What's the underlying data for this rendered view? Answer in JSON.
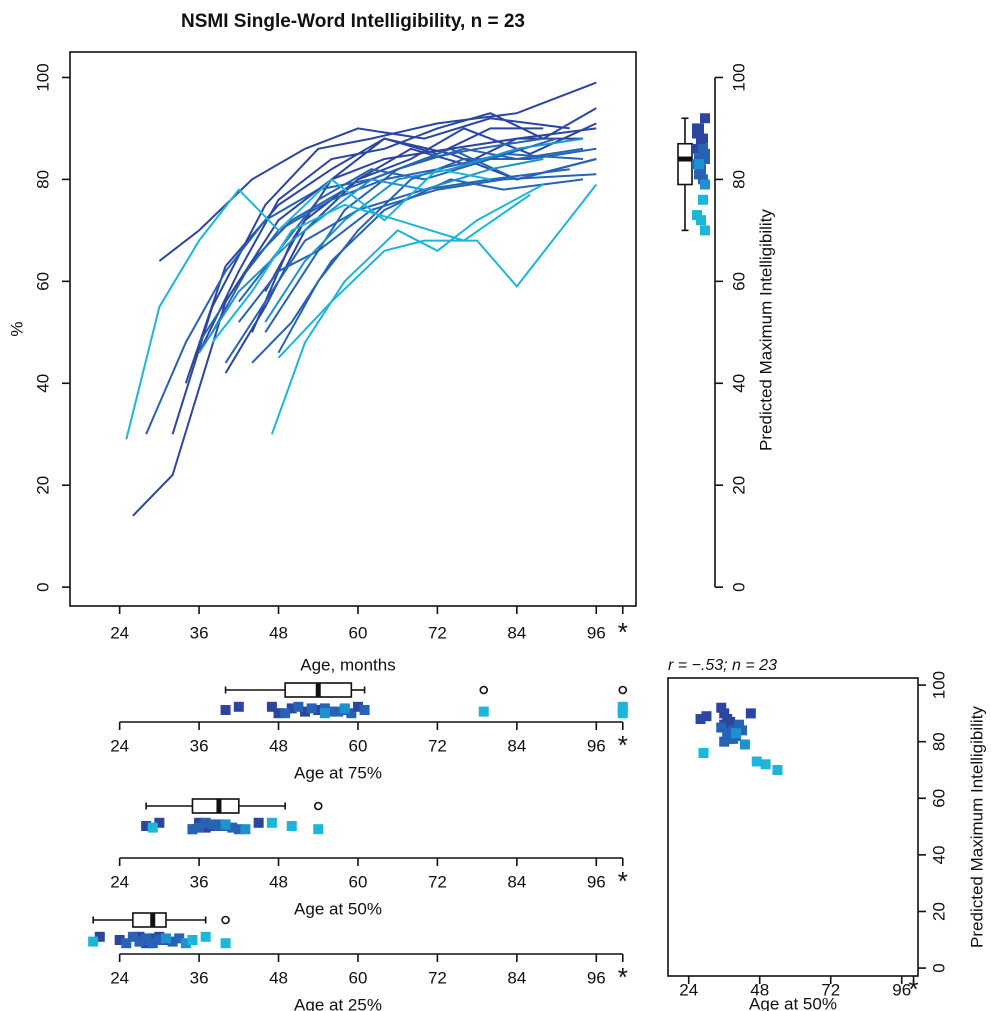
{
  "chart_data": [
    {
      "type": "line",
      "title": "NSMI Single-Word Intelligibility, n = 23",
      "xlabel": "Age, months",
      "ylabel": "%",
      "xlim": [
        16.5,
        102
      ],
      "ylim": [
        -3.7,
        105
      ],
      "xticks": [
        24,
        36,
        48,
        60,
        72,
        84,
        96,
        {
          "value": 100,
          "label": "*"
        }
      ],
      "yticks": [
        0,
        20,
        40,
        60,
        80,
        100
      ],
      "series": [
        {
          "color": "#2b45a0",
          "x": [
            32,
            38,
            46,
            54,
            62,
            72,
            84,
            96
          ],
          "values": [
            30,
            55,
            75,
            86,
            88,
            91,
            93,
            99
          ]
        },
        {
          "color": "#2b45a0",
          "x": [
            30,
            36,
            44,
            52,
            60,
            70,
            80,
            92
          ],
          "values": [
            64,
            70,
            80,
            86,
            90,
            88,
            92,
            90
          ]
        },
        {
          "color": "#2b45a0",
          "x": [
            36,
            42,
            48,
            56,
            64,
            72,
            80,
            88,
            96
          ],
          "values": [
            46,
            62,
            76,
            84,
            86,
            90,
            93,
            88,
            94
          ]
        },
        {
          "color": "#2b45a0",
          "x": [
            34,
            40,
            48,
            56,
            64,
            74,
            84,
            96
          ],
          "values": [
            40,
            63,
            75,
            82,
            88,
            85,
            80,
            84
          ]
        },
        {
          "color": "#2b45a0",
          "x": [
            40,
            46,
            52,
            60,
            68,
            76,
            86,
            96
          ],
          "values": [
            42,
            55,
            70,
            80,
            84,
            90,
            85,
            91
          ]
        },
        {
          "color": "#2b45a0",
          "x": [
            44,
            50,
            56,
            64,
            72,
            80,
            88
          ],
          "values": [
            50,
            68,
            80,
            88,
            85,
            90,
            90
          ]
        },
        {
          "color": "#2b45a0",
          "x": [
            46,
            52,
            60,
            68,
            76,
            84,
            94
          ],
          "values": [
            58,
            72,
            80,
            86,
            83,
            88,
            88
          ]
        },
        {
          "color": "#2663b5",
          "x": [
            28,
            34,
            40,
            46,
            54,
            62,
            70,
            78,
            88
          ],
          "values": [
            30,
            48,
            62,
            72,
            78,
            80,
            84,
            86,
            88
          ]
        },
        {
          "color": "#2663b5",
          "x": [
            38,
            44,
            50,
            58,
            66,
            76,
            84,
            94
          ],
          "values": [
            50,
            64,
            72,
            78,
            82,
            86,
            84,
            86
          ]
        },
        {
          "color": "#2663b5",
          "x": [
            42,
            48,
            54,
            62,
            70,
            80,
            90
          ],
          "values": [
            56,
            66,
            76,
            82,
            80,
            84,
            88
          ]
        },
        {
          "color": "#2663b5",
          "x": [
            36,
            42,
            48,
            56,
            64,
            72,
            82,
            94
          ],
          "values": [
            48,
            60,
            70,
            76,
            80,
            82,
            85,
            84
          ]
        },
        {
          "color": "#2663b5",
          "x": [
            46,
            52,
            58,
            66,
            74,
            84,
            96
          ],
          "values": [
            50,
            62,
            74,
            82,
            86,
            80,
            84
          ]
        },
        {
          "color": "#2663b5",
          "x": [
            48,
            54,
            60,
            68,
            76,
            86,
            96
          ],
          "values": [
            46,
            60,
            70,
            80,
            84,
            84,
            86
          ]
        },
        {
          "color": "#2663b5",
          "x": [
            40,
            46,
            52,
            60,
            70,
            80,
            92
          ],
          "values": [
            44,
            56,
            68,
            74,
            78,
            80,
            82
          ]
        },
        {
          "color": "#2663b5",
          "x": [
            42,
            48,
            54,
            62,
            72,
            82,
            96
          ],
          "values": [
            52,
            62,
            66,
            74,
            78,
            80,
            81
          ]
        },
        {
          "color": "#2b45a0",
          "x": [
            26,
            32,
            40,
            48,
            56,
            64,
            74,
            84,
            96
          ],
          "values": [
            14,
            22,
            56,
            72,
            80,
            84,
            86,
            88,
            90
          ]
        },
        {
          "color": "#2663b5",
          "x": [
            44,
            50,
            56,
            64,
            74,
            82,
            94
          ],
          "values": [
            44,
            52,
            64,
            74,
            80,
            78,
            80
          ]
        },
        {
          "color": "#1c93cf",
          "x": [
            36,
            42,
            50,
            56,
            62,
            70,
            80,
            88
          ],
          "values": [
            46,
            58,
            68,
            74,
            80,
            78,
            82,
            84
          ]
        },
        {
          "color": "#1c93cf",
          "x": [
            46,
            52,
            58,
            66,
            74,
            84,
            94
          ],
          "values": [
            52,
            64,
            72,
            80,
            82,
            86,
            88
          ]
        },
        {
          "color": "#1bb6d9",
          "x": [
            25,
            30,
            36,
            42,
            48,
            56,
            64,
            72,
            80
          ],
          "values": [
            29,
            55,
            68,
            78,
            70,
            80,
            72,
            82,
            80
          ]
        },
        {
          "color": "#1bb6d9",
          "x": [
            38,
            44,
            50,
            58,
            66,
            76,
            86
          ],
          "values": [
            48,
            58,
            70,
            75,
            72,
            68,
            77
          ]
        },
        {
          "color": "#1bb6d9",
          "x": [
            47,
            52,
            58,
            66,
            72,
            78,
            88
          ],
          "values": [
            30,
            48,
            60,
            70,
            66,
            72,
            79
          ]
        },
        {
          "color": "#1bb6d9",
          "x": [
            48,
            56,
            64,
            70,
            78,
            84,
            96
          ],
          "values": [
            45,
            56,
            66,
            68,
            68,
            59,
            79
          ]
        }
      ]
    },
    {
      "type": "box",
      "orientation": "vertical",
      "ylabel": "Predicted Maximum Intelligibility",
      "ylim": [
        -3.7,
        105
      ],
      "yticks": [
        0,
        20,
        40,
        60,
        80,
        100
      ],
      "values": [
        89,
        88,
        92,
        90,
        88,
        86,
        87,
        85,
        84,
        86,
        83,
        82,
        84,
        81,
        80,
        90,
        81,
        79,
        83,
        76,
        73,
        72,
        70
      ],
      "colors": [
        "#2b45a0",
        "#2b45a0",
        "#2b45a0",
        "#2b45a0",
        "#2b45a0",
        "#2b45a0",
        "#2b45a0",
        "#2663b5",
        "#2663b5",
        "#2663b5",
        "#2663b5",
        "#2663b5",
        "#2663b5",
        "#2663b5",
        "#2663b5",
        "#2b45a0",
        "#2663b5",
        "#1c93cf",
        "#1c93cf",
        "#1bb6d9",
        "#1bb6d9",
        "#1bb6d9",
        "#1bb6d9"
      ],
      "box": {
        "whislo": 70,
        "q1": 79,
        "med": 84,
        "q3": 87,
        "whishi": 92
      },
      "fliers": []
    },
    {
      "type": "box",
      "orientation": "horizontal",
      "xlabel": "Age at 75%",
      "xlim": [
        16.5,
        102
      ],
      "xticks": [
        24,
        36,
        48,
        60,
        72,
        84,
        96,
        {
          "value": 100,
          "label": "*"
        }
      ],
      "values": [
        42,
        40,
        48,
        50,
        52,
        47,
        54,
        49,
        55,
        57,
        51,
        58,
        59,
        53,
        56,
        60,
        61,
        55,
        58,
        79,
        100,
        100,
        100
      ],
      "colors": [
        "#2b45a0",
        "#2b45a0",
        "#2b45a0",
        "#2b45a0",
        "#2b45a0",
        "#2b45a0",
        "#2b45a0",
        "#2663b5",
        "#2663b5",
        "#2663b5",
        "#2663b5",
        "#2663b5",
        "#2663b5",
        "#2663b5",
        "#2663b5",
        "#2b45a0",
        "#2663b5",
        "#1c93cf",
        "#1c93cf",
        "#1bb6d9",
        "#1bb6d9",
        "#1bb6d9",
        "#1bb6d9"
      ],
      "box": {
        "whislo": 40,
        "q1": 49,
        "med": 54,
        "q3": 59,
        "whishi": 61
      },
      "fliers": [
        79,
        100
      ]
    },
    {
      "type": "box",
      "orientation": "horizontal",
      "xlabel": "Age at 50%",
      "xlim": [
        16.5,
        102
      ],
      "xticks": [
        24,
        36,
        48,
        60,
        72,
        84,
        96,
        {
          "value": 100,
          "label": "*"
        }
      ],
      "values": [
        30,
        28,
        35,
        36,
        37,
        36,
        38,
        35,
        39,
        41,
        37,
        40,
        42,
        38,
        36,
        45,
        39,
        43,
        40,
        29,
        47,
        50,
        54
      ],
      "colors": [
        "#2b45a0",
        "#2b45a0",
        "#2b45a0",
        "#2b45a0",
        "#2b45a0",
        "#2b45a0",
        "#2b45a0",
        "#2663b5",
        "#2663b5",
        "#2663b5",
        "#2663b5",
        "#2663b5",
        "#2663b5",
        "#2663b5",
        "#2663b5",
        "#2b45a0",
        "#2663b5",
        "#1c93cf",
        "#1c93cf",
        "#1bb6d9",
        "#1bb6d9",
        "#1bb6d9",
        "#1bb6d9"
      ],
      "box": {
        "whislo": 28,
        "q1": 35,
        "med": 39,
        "q3": 42,
        "whishi": 49
      },
      "fliers": [
        54
      ]
    },
    {
      "type": "box",
      "orientation": "horizontal",
      "xlabel": "Age at 25%",
      "xlim": [
        16.5,
        102
      ],
      "xticks": [
        24,
        36,
        48,
        60,
        72,
        84,
        96,
        {
          "value": 100,
          "label": "*"
        }
      ],
      "values": [
        27,
        24,
        28,
        29,
        27,
        30,
        31,
        25,
        28,
        32,
        26,
        30,
        29,
        33,
        27,
        21,
        28,
        34,
        31,
        20,
        37,
        35,
        40
      ],
      "colors": [
        "#2b45a0",
        "#2b45a0",
        "#2b45a0",
        "#2b45a0",
        "#2b45a0",
        "#2b45a0",
        "#2b45a0",
        "#2663b5",
        "#2663b5",
        "#2663b5",
        "#2663b5",
        "#2663b5",
        "#2663b5",
        "#2663b5",
        "#2663b5",
        "#2b45a0",
        "#2663b5",
        "#1c93cf",
        "#1c93cf",
        "#1bb6d9",
        "#1bb6d9",
        "#1bb6d9",
        "#1bb6d9"
      ],
      "box": {
        "whislo": 20,
        "q1": 26,
        "med": 29,
        "q3": 31,
        "whishi": 37
      },
      "fliers": [
        40
      ]
    },
    {
      "type": "scatter",
      "note": "r = −.53; n = 23",
      "xlabel": "Age at 50%",
      "ylabel": "Predicted Maximum Intelligibility",
      "xlim": [
        17,
        101.5
      ],
      "ylim": [
        -2.8,
        102.5
      ],
      "xticks": [
        24,
        48,
        72,
        96,
        {
          "value": 100,
          "label": "*"
        }
      ],
      "yticks": [
        0,
        20,
        40,
        60,
        80,
        100
      ],
      "x": [
        30,
        28,
        35,
        36,
        37,
        36,
        38,
        35,
        39,
        41,
        37,
        40,
        42,
        38,
        36,
        45,
        39,
        43,
        40,
        29,
        47,
        50,
        54
      ],
      "values": [
        89,
        88,
        92,
        90,
        88,
        86,
        87,
        85,
        84,
        86,
        83,
        82,
        84,
        81,
        80,
        90,
        81,
        79,
        83,
        76,
        73,
        72,
        70
      ],
      "colors": [
        "#2b45a0",
        "#2b45a0",
        "#2b45a0",
        "#2b45a0",
        "#2b45a0",
        "#2b45a0",
        "#2b45a0",
        "#2663b5",
        "#2663b5",
        "#2663b5",
        "#2663b5",
        "#2663b5",
        "#2663b5",
        "#2663b5",
        "#2663b5",
        "#2b45a0",
        "#2663b5",
        "#1c93cf",
        "#1c93cf",
        "#1bb6d9",
        "#1bb6d9",
        "#1bb6d9",
        "#1bb6d9"
      ]
    }
  ]
}
